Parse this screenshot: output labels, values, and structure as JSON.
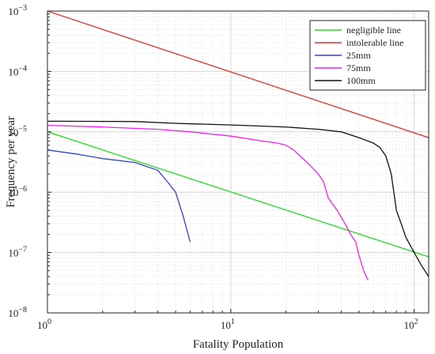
{
  "chart_data": {
    "type": "line",
    "title": "",
    "xlabel": "Fatality Population",
    "ylabel": "Frequency per year",
    "xscale": "log",
    "yscale": "log",
    "xlim": [
      1,
      120
    ],
    "ylim": [
      1e-08,
      0.001
    ],
    "grid": true,
    "legend_position": "top-right",
    "x_ticks": [
      {
        "value": 1,
        "base": "10",
        "exp": "0"
      },
      {
        "value": 10,
        "base": "10",
        "exp": "1"
      },
      {
        "value": 100,
        "base": "10",
        "exp": "2"
      }
    ],
    "y_ticks": [
      {
        "value": 1e-08,
        "base": "10",
        "exp": "−8"
      },
      {
        "value": 1e-07,
        "base": "10",
        "exp": "−7"
      },
      {
        "value": 1e-06,
        "base": "10",
        "exp": "−6"
      },
      {
        "value": 1e-05,
        "base": "10",
        "exp": "−5"
      },
      {
        "value": 0.0001,
        "base": "10",
        "exp": "−4"
      },
      {
        "value": 0.001,
        "base": "10",
        "exp": "−3"
      }
    ],
    "series": [
      {
        "name": "negligible line",
        "color": "#22dd22",
        "points": [
          [
            1,
            1e-05
          ],
          [
            120,
            8.5e-08
          ]
        ]
      },
      {
        "name": "intolerable line",
        "color": "#e03030",
        "points": [
          [
            1,
            0.001
          ],
          [
            120,
            8e-06
          ]
        ]
      },
      {
        "name": "25mm",
        "color": "#3344cc",
        "points": [
          [
            1,
            5e-06
          ],
          [
            1.5,
            4.2e-06
          ],
          [
            2,
            3.6e-06
          ],
          [
            3,
            3.1e-06
          ],
          [
            4,
            2.3e-06
          ],
          [
            4.5,
            1.5e-06
          ],
          [
            5,
            1e-06
          ],
          [
            5.5,
            4e-07
          ],
          [
            6,
            1.5e-07
          ]
        ]
      },
      {
        "name": "75mm",
        "color": "#ee22ee",
        "points": [
          [
            1,
            1.28e-05
          ],
          [
            2,
            1.2e-05
          ],
          [
            4,
            1.1e-05
          ],
          [
            6,
            1e-05
          ],
          [
            10,
            8.5e-06
          ],
          [
            15,
            7e-06
          ],
          [
            18,
            6.5e-06
          ],
          [
            20,
            6e-06
          ],
          [
            22,
            5e-06
          ],
          [
            25,
            3.5e-06
          ],
          [
            28,
            2.5e-06
          ],
          [
            30,
            2e-06
          ],
          [
            32,
            1.5e-06
          ],
          [
            34,
            8e-07
          ],
          [
            38,
            5e-07
          ],
          [
            42,
            3e-07
          ],
          [
            45,
            2e-07
          ],
          [
            48,
            1.5e-07
          ],
          [
            50,
            9e-08
          ],
          [
            53,
            5e-08
          ],
          [
            56,
            3.5e-08
          ]
        ]
      },
      {
        "name": "100mm",
        "color": "#111111",
        "points": [
          [
            1,
            1.5e-05
          ],
          [
            3,
            1.48e-05
          ],
          [
            5,
            1.38e-05
          ],
          [
            10,
            1.3e-05
          ],
          [
            20,
            1.2e-05
          ],
          [
            30,
            1.1e-05
          ],
          [
            40,
            1e-05
          ],
          [
            50,
            8e-06
          ],
          [
            60,
            6.5e-06
          ],
          [
            65,
            5.5e-06
          ],
          [
            70,
            4e-06
          ],
          [
            75,
            2e-06
          ],
          [
            80,
            5e-07
          ],
          [
            85,
            3e-07
          ],
          [
            90,
            1.8e-07
          ],
          [
            100,
            1e-07
          ],
          [
            110,
            6e-08
          ],
          [
            120,
            4e-08
          ]
        ]
      }
    ]
  }
}
